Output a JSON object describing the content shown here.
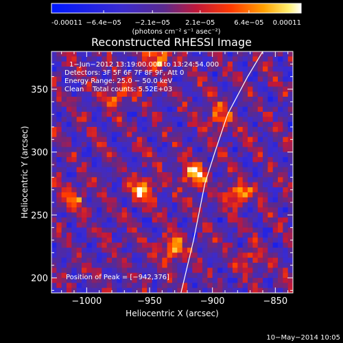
{
  "chart_data": {
    "type": "heatmap",
    "title": "Reconstructed RHESSI Image",
    "colorbar": {
      "ticks": [
        "-0.00011",
        "−6.4e−05",
        "−2.1e−05",
        "2.1e−05",
        "6.4e−05",
        "0.00011"
      ],
      "values": [
        -0.00011,
        -6.4e-05,
        -2.1e-05,
        2.1e-05,
        6.4e-05,
        0.00011
      ],
      "unit_label": "(photons cm⁻² s⁻¹ asec⁻²)",
      "colormap": "blue-purple-red-orange-yellow-white"
    },
    "annotations": [
      "1−Jun−2012 13:19:00.000 to 13:24:54.000",
      "Detectors: 3F 5F 6F 7F 8F 9F, Att 0",
      "Energy Range: 25.0 − 50.0 keV",
      "Clean    Total counts: 5.52E+03"
    ],
    "peak_text": "Position of Peak = [−942,376]",
    "peak": [
      -942,
      376
    ],
    "xlabel": "Heliocentric X (arcsec)",
    "ylabel": "Heliocentric Y (arcsec)",
    "xlim": [
      -1028,
      -836
    ],
    "ylim": [
      188,
      380
    ],
    "xticks": [
      -1000,
      -950,
      -900,
      -850
    ],
    "xtick_labels": [
      "−1000",
      "−950",
      "−900",
      "−850"
    ],
    "yticks": [
      200,
      250,
      300,
      350
    ],
    "ytick_labels": [
      "200",
      "250",
      "300",
      "350"
    ],
    "limb": [
      [
        -925,
        188
      ],
      [
        -915,
        230
      ],
      [
        -906,
        275
      ],
      [
        -898,
        300
      ],
      [
        -888,
        330
      ],
      [
        -872,
        360
      ],
      [
        -860,
        380
      ]
    ],
    "sources": [
      {
        "x": -955,
        "y": 270,
        "amp": 0.9
      },
      {
        "x": -932,
        "y": 222,
        "amp": 0.85
      },
      {
        "x": -915,
        "y": 282,
        "amp": 0.95
      },
      {
        "x": -880,
        "y": 266,
        "amp": 0.8
      },
      {
        "x": -896,
        "y": 328,
        "amp": 0.7
      },
      {
        "x": -1010,
        "y": 262,
        "amp": 0.55
      },
      {
        "x": -942,
        "y": 376,
        "amp": 0.9
      },
      {
        "x": -975,
        "y": 345,
        "amp": 0.6
      },
      {
        "x": -870,
        "y": 215,
        "amp": 0.6
      }
    ]
  },
  "footer": {
    "timestamp": "10−May−2014 10:05"
  }
}
